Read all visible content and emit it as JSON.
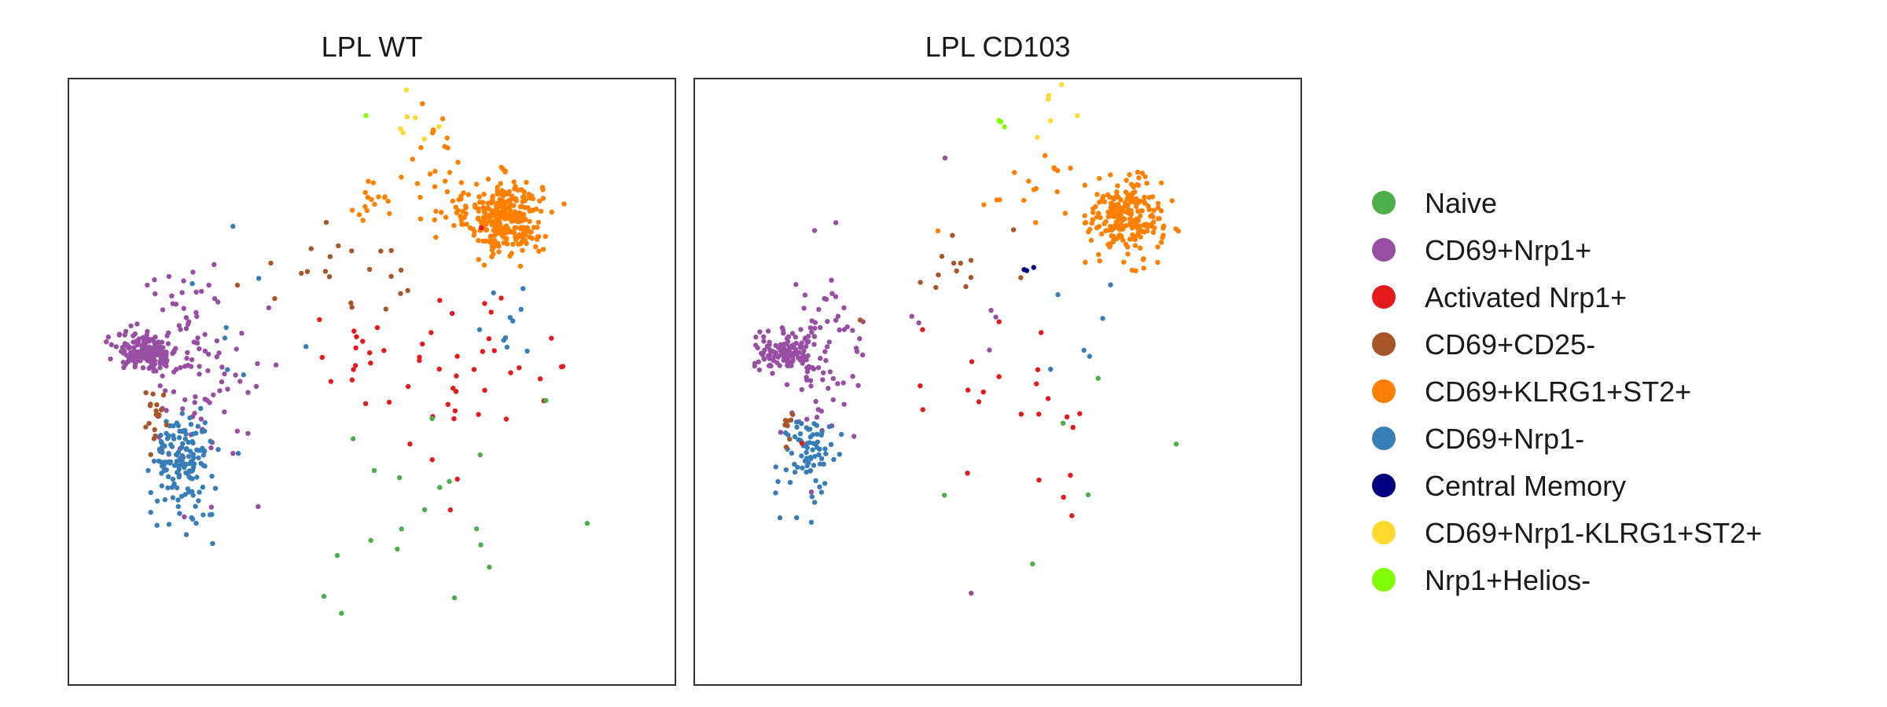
{
  "chart_data": [
    {
      "type": "scatter",
      "title": "LPL WT",
      "xlim": [
        0,
        100
      ],
      "ylim": [
        0,
        100
      ],
      "grid": false,
      "clusters": [
        {
          "category": "CD69+KLRG1+ST2+",
          "cx": 72,
          "cy": 77,
          "sx": 3.0,
          "sy": 3.0,
          "n": 300
        },
        {
          "category": "CD69+KLRG1+ST2+",
          "cx": 64,
          "cy": 80,
          "sx": 6.0,
          "sy": 4.0,
          "n": 40
        },
        {
          "category": "CD69+KLRG1+ST2+",
          "cx": 50,
          "cy": 80,
          "sx": 2.0,
          "sy": 1.5,
          "n": 12
        },
        {
          "category": "CD69+KLRG1+ST2+",
          "cx": 60,
          "cy": 88,
          "sx": 3.5,
          "sy": 3.0,
          "n": 12
        },
        {
          "category": "CD69+Nrp1+",
          "cx": 13,
          "cy": 55,
          "sx": 2.5,
          "sy": 1.5,
          "n": 170
        },
        {
          "category": "CD69+Nrp1+",
          "cx": 20,
          "cy": 54,
          "sx": 4.5,
          "sy": 8.0,
          "n": 95
        },
        {
          "category": "CD69+Nrp1+",
          "cx": 28,
          "cy": 48,
          "sx": 7.0,
          "sy": 10.0,
          "n": 10
        },
        {
          "category": "CD69+Nrp1-",
          "cx": 19,
          "cy": 38,
          "sx": 2.0,
          "sy": 3.0,
          "n": 110
        },
        {
          "category": "CD69+Nrp1-",
          "cx": 19,
          "cy": 33,
          "sx": 4.0,
          "sy": 5.0,
          "n": 45
        },
        {
          "category": "CD69+Nrp1-",
          "cx": 72,
          "cy": 62,
          "sx": 3.0,
          "sy": 4.0,
          "n": 10
        },
        {
          "category": "CD69+Nrp1-",
          "cx": 28,
          "cy": 55,
          "sx": 6.0,
          "sy": 8.0,
          "n": 8
        },
        {
          "category": "CD69+CD25-",
          "cx": 44,
          "cy": 68,
          "sx": 7.0,
          "sy": 3.5,
          "n": 22
        },
        {
          "category": "CD69+CD25-",
          "cx": 15,
          "cy": 45,
          "sx": 1.5,
          "sy": 2.5,
          "n": 18
        },
        {
          "category": "Activated Nrp1+",
          "cx": 64,
          "cy": 50,
          "sx": 11.0,
          "sy": 9.0,
          "n": 42
        },
        {
          "category": "Activated Nrp1+",
          "cx": 47,
          "cy": 55,
          "sx": 3.5,
          "sy": 2.5,
          "n": 12
        },
        {
          "category": "Naive",
          "cx": 62,
          "cy": 28,
          "sx": 9.0,
          "sy": 10.0,
          "n": 20
        },
        {
          "category": "CD69+Nrp1-KLRG1+ST2+",
          "cx": 58,
          "cy": 92,
          "sx": 1.8,
          "sy": 2.5,
          "n": 7
        },
        {
          "category": "Nrp1+Helios-",
          "cx": 49,
          "cy": 94,
          "sx": 0.2,
          "sy": 0.2,
          "n": 1
        }
      ]
    },
    {
      "type": "scatter",
      "title": "LPL CD103",
      "xlim": [
        0,
        100
      ],
      "ylim": [
        0,
        100
      ],
      "grid": false,
      "clusters": [
        {
          "category": "CD69+KLRG1+ST2+",
          "cx": 71,
          "cy": 77,
          "sx": 3.0,
          "sy": 3.2,
          "n": 230
        },
        {
          "category": "CD69+KLRG1+ST2+",
          "cx": 55,
          "cy": 80,
          "sx": 6.0,
          "sy": 3.0,
          "n": 12
        },
        {
          "category": "CD69+KLRG1+ST2+",
          "cx": 60,
          "cy": 86,
          "sx": 2.0,
          "sy": 2.0,
          "n": 5
        },
        {
          "category": "CD69+Nrp1+",
          "cx": 15,
          "cy": 55,
          "sx": 2.5,
          "sy": 1.5,
          "n": 120
        },
        {
          "category": "CD69+Nrp1+",
          "cx": 21,
          "cy": 53,
          "sx": 3.5,
          "sy": 7.0,
          "n": 75
        },
        {
          "category": "CD69+Nrp1+",
          "cx": 40,
          "cy": 58,
          "sx": 10.0,
          "sy": 14.0,
          "n": 8
        },
        {
          "category": "CD69+Nrp1-",
          "cx": 19,
          "cy": 39,
          "sx": 2.0,
          "sy": 2.5,
          "n": 50
        },
        {
          "category": "CD69+Nrp1-",
          "cx": 19,
          "cy": 36,
          "sx": 3.5,
          "sy": 4.0,
          "n": 25
        },
        {
          "category": "CD69+Nrp1-",
          "cx": 66,
          "cy": 61,
          "sx": 4.0,
          "sy": 5.0,
          "n": 6
        },
        {
          "category": "CD69+CD25-",
          "cx": 43,
          "cy": 70,
          "sx": 4.0,
          "sy": 3.5,
          "n": 14
        },
        {
          "category": "CD69+CD25-",
          "cx": 16,
          "cy": 43,
          "sx": 0.8,
          "sy": 1.5,
          "n": 8
        },
        {
          "category": "Activated Nrp1+",
          "cx": 55,
          "cy": 46,
          "sx": 9.0,
          "sy": 7.0,
          "n": 24
        },
        {
          "category": "Naive",
          "cx": 58,
          "cy": 37,
          "sx": 7.0,
          "sy": 7.0,
          "n": 6
        },
        {
          "category": "Central Memory",
          "cx": 55.5,
          "cy": 67,
          "sx": 1.5,
          "sy": 1.2,
          "n": 3
        },
        {
          "category": "CD69+Nrp1-KLRG1+ST2+",
          "cx": 59,
          "cy": 91,
          "sx": 1.8,
          "sy": 3.0,
          "n": 6
        },
        {
          "category": "Nrp1+Helios-",
          "cx": 50.5,
          "cy": 93,
          "sx": 0.5,
          "sy": 0.5,
          "n": 4
        }
      ]
    }
  ],
  "legend": {
    "placement": "right",
    "items": [
      {
        "label": "Naive",
        "color": "#4DAF4A"
      },
      {
        "label": "CD69+Nrp1+",
        "color": "#984EA3"
      },
      {
        "label": "Activated Nrp1+",
        "color": "#E41A1C"
      },
      {
        "label": "CD69+CD25-",
        "color": "#A65628"
      },
      {
        "label": "CD69+KLRG1+ST2+",
        "color": "#FF7F00"
      },
      {
        "label": "CD69+Nrp1-",
        "color": "#377EB8"
      },
      {
        "label": "Central Memory",
        "color": "#000080"
      },
      {
        "label": "CD69+Nrp1-KLRG1+ST2+",
        "color": "#FFD92F"
      },
      {
        "label": "Nrp1+Helios-",
        "color": "#7FFF00"
      }
    ]
  }
}
